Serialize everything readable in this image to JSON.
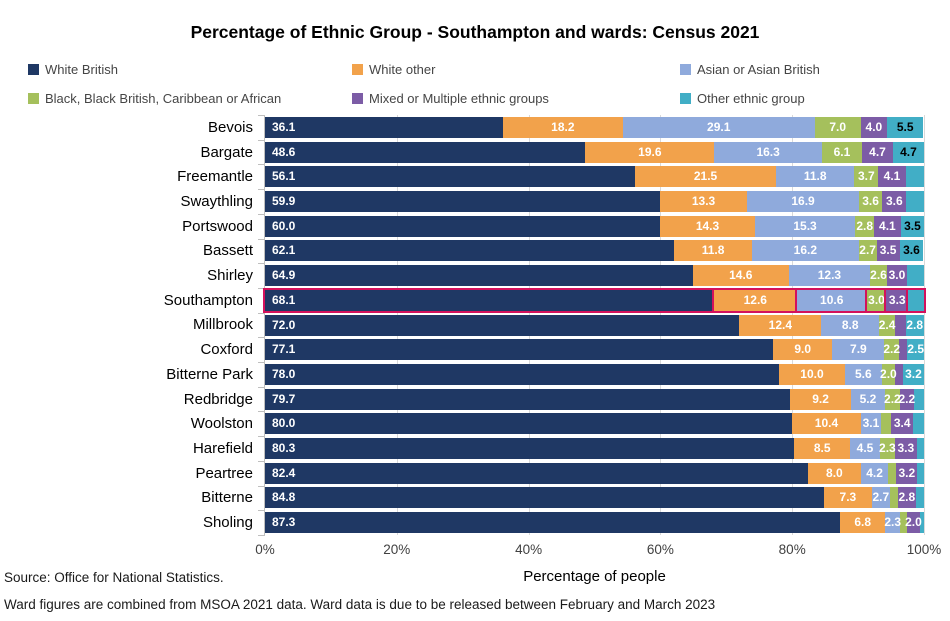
{
  "title": "Percentage of Ethnic Group - Southampton and wards: Census 2021",
  "legend": {
    "items": [
      {
        "label": "White British",
        "color": "#1f3864",
        "col": 0,
        "row": 0
      },
      {
        "label": "White other",
        "color": "#f2a24b",
        "col": 1,
        "row": 0
      },
      {
        "label": "Asian or Asian British",
        "color": "#8faadc",
        "col": 2,
        "row": 0
      },
      {
        "label": "Black, Black British, Caribbean or African",
        "color": "#a5c05c",
        "col": 0,
        "row": 1
      },
      {
        "label": "Mixed or Multiple ethnic groups",
        "color": "#7c5ca6",
        "col": 1,
        "row": 1
      },
      {
        "label": "Other ethnic group",
        "color": "#41aec6",
        "col": 2,
        "row": 1
      }
    ]
  },
  "chart_data": {
    "type": "bar",
    "orientation": "horizontal-stacked",
    "title": "Percentage of Ethnic Group - Southampton and wards: Census 2021",
    "xlabel": "Percentage of people",
    "xlim": [
      0,
      100
    ],
    "xticks": [
      "0%",
      "20%",
      "40%",
      "60%",
      "80%",
      "100%"
    ],
    "grid": "vertical 20% intervals, light gray",
    "legend_position": "top, two rows, three columns",
    "series": [
      "White British",
      "White other",
      "Asian or Asian British",
      "Black, Black British, Caribbean or African",
      "Mixed or Multiple ethnic groups",
      "Other ethnic group"
    ],
    "series_colors": [
      "#1f3864",
      "#f2a24b",
      "#8faadc",
      "#a5c05c",
      "#7c5ca6",
      "#41aec6"
    ],
    "highlight_box_color": "#d3115c",
    "rows": [
      {
        "ward": "Bevois",
        "values": [
          36.1,
          18.2,
          29.1,
          7.0,
          4.0,
          5.5
        ],
        "labels": [
          "36.1",
          "18.2",
          "29.1",
          "7.0",
          "4.0",
          "5.5"
        ],
        "teal_black": true,
        "highlight": false
      },
      {
        "ward": "Bargate",
        "values": [
          48.6,
          19.6,
          16.3,
          6.1,
          4.7,
          4.7
        ],
        "labels": [
          "48.6",
          "19.6",
          "16.3",
          "6.1",
          "4.7",
          "4.7"
        ],
        "teal_black": true,
        "highlight": false
      },
      {
        "ward": "Freemantle",
        "values": [
          56.1,
          21.5,
          11.8,
          3.7,
          4.1,
          2.8
        ],
        "labels": [
          "56.1",
          "21.5",
          "11.8",
          "3.7",
          "4.1",
          ""
        ],
        "teal_black": false,
        "highlight": false
      },
      {
        "ward": "Swaythling",
        "values": [
          59.9,
          13.3,
          16.9,
          3.6,
          3.6,
          2.7
        ],
        "labels": [
          "59.9",
          "13.3",
          "16.9",
          "3.6",
          "3.6",
          ""
        ],
        "teal_black": false,
        "highlight": false
      },
      {
        "ward": "Portswood",
        "values": [
          60.0,
          14.3,
          15.3,
          2.8,
          4.1,
          3.5
        ],
        "labels": [
          "60.0",
          "14.3",
          "15.3",
          "2.8",
          "4.1",
          "3.5"
        ],
        "teal_black": true,
        "highlight": false
      },
      {
        "ward": "Bassett",
        "values": [
          62.1,
          11.8,
          16.2,
          2.7,
          3.5,
          3.6
        ],
        "labels": [
          "62.1",
          "11.8",
          "16.2",
          "2.7",
          "3.5",
          "3.6"
        ],
        "teal_black": true,
        "highlight": false
      },
      {
        "ward": "Shirley",
        "values": [
          64.9,
          14.6,
          12.3,
          2.6,
          3.0,
          2.6
        ],
        "labels": [
          "64.9",
          "14.6",
          "12.3",
          "2.6",
          "3.0",
          ""
        ],
        "teal_black": false,
        "highlight": false
      },
      {
        "ward": "Southampton",
        "values": [
          68.1,
          12.6,
          10.6,
          3.0,
          3.3,
          2.4
        ],
        "labels": [
          "68.1",
          "12.6",
          "10.6",
          "3.0",
          "3.3",
          ""
        ],
        "teal_black": false,
        "highlight": true
      },
      {
        "ward": "Millbrook",
        "values": [
          72.0,
          12.4,
          8.8,
          2.4,
          1.6,
          2.8
        ],
        "labels": [
          "72.0",
          "12.4",
          "8.8",
          "2.4",
          "",
          "2.8"
        ],
        "teal_black": false,
        "highlight": false
      },
      {
        "ward": "Coxford",
        "values": [
          77.1,
          9.0,
          7.9,
          2.2,
          1.3,
          2.5
        ],
        "labels": [
          "77.1",
          "9.0",
          "7.9",
          "2.2",
          "",
          "2.5"
        ],
        "teal_black": false,
        "highlight": false
      },
      {
        "ward": "Bitterne Park",
        "values": [
          78.0,
          10.0,
          5.6,
          2.0,
          1.2,
          3.2
        ],
        "labels": [
          "78.0",
          "10.0",
          "5.6",
          "2.0",
          "",
          "3.2"
        ],
        "teal_black": false,
        "highlight": false
      },
      {
        "ward": "Redbridge",
        "values": [
          79.7,
          9.2,
          5.2,
          2.2,
          2.2,
          1.5
        ],
        "labels": [
          "79.7",
          "9.2",
          "5.2",
          "2.2",
          "2.2",
          ""
        ],
        "teal_black": false,
        "highlight": false
      },
      {
        "ward": "Woolston",
        "values": [
          80.0,
          10.4,
          3.1,
          1.5,
          3.4,
          1.6
        ],
        "labels": [
          "80.0",
          "10.4",
          "3.1",
          "",
          "3.4",
          ""
        ],
        "teal_black": false,
        "highlight": false
      },
      {
        "ward": "Harefield",
        "values": [
          80.3,
          8.5,
          4.5,
          2.3,
          3.3,
          1.1
        ],
        "labels": [
          "80.3",
          "8.5",
          "4.5",
          "2.3",
          "3.3",
          ""
        ],
        "teal_black": false,
        "highlight": false
      },
      {
        "ward": "Peartree",
        "values": [
          82.4,
          8.0,
          4.2,
          1.2,
          3.2,
          1.0
        ],
        "labels": [
          "82.4",
          "8.0",
          "4.2",
          "",
          "3.2",
          ""
        ],
        "teal_black": false,
        "highlight": false
      },
      {
        "ward": "Bitterne",
        "values": [
          84.8,
          7.3,
          2.7,
          1.2,
          2.8,
          1.2
        ],
        "labels": [
          "84.8",
          "7.3",
          "2.7",
          "",
          "2.8",
          ""
        ],
        "teal_black": false,
        "highlight": false
      },
      {
        "ward": "Sholing",
        "values": [
          87.3,
          6.8,
          2.3,
          1.0,
          2.0,
          0.6
        ],
        "labels": [
          "87.3",
          "6.8",
          "2.3",
          "",
          "2.0",
          ""
        ],
        "teal_black": false,
        "highlight": false
      }
    ]
  },
  "footer": {
    "source": "Source: Office for National  Statistics.",
    "note": "Ward figures are combined  from MSOA 2021 data.  Ward data  is  due  to  be  released  between  February and March 2023"
  },
  "style_colors": {
    "gridline": "#d9d9d9",
    "axis": "#bfbfbf",
    "highlight": "#d3115c"
  }
}
